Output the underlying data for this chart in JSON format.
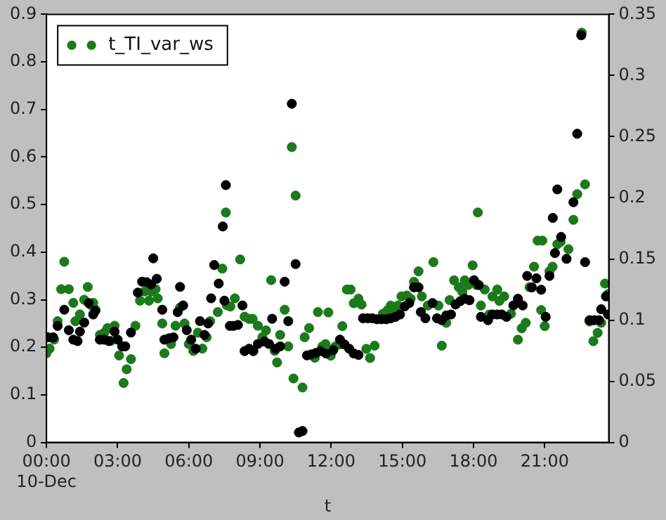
{
  "chart_data": {
    "type": "scatter",
    "xlabel": "t",
    "legend": "top left",
    "marker": "circle",
    "grid": false,
    "xlim": [
      0,
      23.7
    ],
    "xticks": [
      {
        "value": 0,
        "label": "00:00\n10-Dec"
      },
      {
        "value": 3,
        "label": "03:00"
      },
      {
        "value": 6,
        "label": "06:00"
      },
      {
        "value": 9,
        "label": "09:00"
      },
      {
        "value": 12,
        "label": "12:00"
      },
      {
        "value": 15,
        "label": "15:00"
      },
      {
        "value": 18,
        "label": "18:00"
      },
      {
        "value": 21,
        "label": "21:00"
      }
    ],
    "ylim": [
      0,
      0.9
    ],
    "yticks": [
      0.0,
      0.1,
      0.2,
      0.3,
      0.4,
      0.5,
      0.6,
      0.7,
      0.8,
      0.9
    ],
    "y2lim": [
      0,
      0.35
    ],
    "y2ticks": [
      0.0,
      0.05,
      0.1,
      0.15,
      0.2,
      0.25,
      0.3,
      0.35
    ],
    "series": [
      {
        "color": "#000000",
        "x": [
          0.06,
          0.28,
          0.47,
          0.75,
          0.94,
          1.13,
          1.31,
          1.41,
          1.59,
          1.78,
          1.97,
          2.06,
          2.25,
          2.44,
          2.63,
          2.87,
          3.0,
          3.19,
          3.32,
          3.56,
          3.85,
          4.03,
          4.22,
          4.41,
          4.5,
          4.65,
          4.88,
          4.97,
          5.16,
          5.35,
          5.53,
          5.63,
          5.76,
          5.91,
          6.1,
          6.29,
          6.47,
          6.66,
          6.81,
          6.94,
          7.07,
          7.26,
          7.43,
          7.5,
          7.56,
          7.73,
          7.88,
          8.07,
          8.26,
          8.35,
          8.54,
          8.72,
          8.91,
          9.19,
          9.38,
          9.51,
          9.66,
          9.85,
          10.04,
          10.19,
          10.34,
          10.5,
          10.64,
          10.79,
          10.98,
          11.16,
          11.35,
          11.54,
          11.78,
          12.08,
          12.37,
          12.56,
          12.76,
          12.95,
          13.15,
          13.34,
          13.54,
          13.73,
          13.93,
          14.12,
          14.32,
          14.51,
          14.71,
          14.9,
          15.1,
          15.29,
          15.49,
          15.68,
          15.78,
          15.97,
          16.27,
          16.46,
          16.66,
          16.85,
          17.05,
          17.24,
          17.44,
          17.63,
          17.83,
          18.02,
          18.22,
          18.31,
          18.61,
          18.8,
          19.0,
          19.19,
          19.39,
          19.68,
          19.87,
          20.07,
          20.26,
          20.46,
          20.65,
          20.85,
          21.04,
          21.2,
          21.34,
          21.43,
          21.53,
          21.69,
          21.92,
          22.21,
          22.37,
          22.54,
          22.7,
          22.89,
          23.09,
          23.29,
          23.38,
          23.58,
          23.67
        ],
        "values": [
          0.221,
          0.221,
          0.245,
          0.279,
          0.236,
          0.216,
          0.213,
          0.233,
          0.252,
          0.293,
          0.269,
          0.277,
          0.216,
          0.216,
          0.213,
          0.233,
          0.216,
          0.202,
          0.202,
          0.231,
          0.315,
          0.338,
          0.337,
          0.332,
          0.387,
          0.344,
          0.279,
          0.216,
          0.219,
          0.221,
          0.274,
          0.327,
          0.288,
          0.236,
          0.216,
          0.197,
          0.255,
          0.226,
          0.25,
          0.303,
          0.373,
          0.334,
          0.454,
          0.298,
          0.541,
          0.245,
          0.245,
          0.247,
          0.288,
          0.192,
          0.197,
          0.192,
          0.207,
          0.212,
          0.207,
          0.26,
          0.197,
          0.202,
          0.338,
          0.255,
          0.712,
          0.375,
          0.021,
          0.024,
          0.183,
          0.185,
          0.188,
          0.192,
          0.187,
          0.194,
          0.216,
          0.206,
          0.197,
          0.187,
          0.184,
          0.261,
          0.261,
          0.261,
          0.259,
          0.259,
          0.259,
          0.261,
          0.264,
          0.269,
          0.286,
          0.293,
          0.326,
          0.326,
          0.274,
          0.261,
          0.293,
          0.261,
          0.257,
          0.267,
          0.269,
          0.29,
          0.297,
          0.302,
          0.299,
          0.341,
          0.331,
          0.264,
          0.257,
          0.269,
          0.269,
          0.269,
          0.264,
          0.288,
          0.302,
          0.288,
          0.35,
          0.326,
          0.345,
          0.321,
          0.264,
          0.35,
          0.472,
          0.398,
          0.532,
          0.432,
          0.386,
          0.505,
          0.649,
          0.856,
          0.379,
          0.257,
          0.257,
          0.257,
          0.28,
          0.307,
          0.269
        ]
      },
      {
        "name": "t_TI_var_ws",
        "color": "#1b7a1b",
        "axis": "y2",
        "x": [
          0,
          0.13,
          0.32,
          0.47,
          0.62,
          0.75,
          0.94,
          1.13,
          1.22,
          1.41,
          1.59,
          1.74,
          1.88,
          1.97,
          2.06,
          2.25,
          2.44,
          2.57,
          2.72,
          2.87,
          3.06,
          3.25,
          3.38,
          3.56,
          3.75,
          3.94,
          4.13,
          4.32,
          4.41,
          4.6,
          4.69,
          4.88,
          4.97,
          5.25,
          5.44,
          5.63,
          5.82,
          6.0,
          6.19,
          6.38,
          6.57,
          6.75,
          6.9,
          7.22,
          7.41,
          7.56,
          7.6,
          7.75,
          7.94,
          8.16,
          8.35,
          8.54,
          8.69,
          8.91,
          9.1,
          9.25,
          9.47,
          9.62,
          9.72,
          9.85,
          10.04,
          10.19,
          10.34,
          10.41,
          10.5,
          10.79,
          10.88,
          11.07,
          11.31,
          11.44,
          11.63,
          11.76,
          11.88,
          11.98,
          12.17,
          12.37,
          12.47,
          12.66,
          12.82,
          12.95,
          13.15,
          13.28,
          13.48,
          13.64,
          13.83,
          14.03,
          14.18,
          14.38,
          14.51,
          14.65,
          14.81,
          14.96,
          15.19,
          15.35,
          15.49,
          15.68,
          15.82,
          16.07,
          16.31,
          16.52,
          16.66,
          16.85,
          16.99,
          17.18,
          17.38,
          17.53,
          17.63,
          17.77,
          17.96,
          18.12,
          18.18,
          18.31,
          18.47,
          18.66,
          18.8,
          19.0,
          19.09,
          19.29,
          19.58,
          19.87,
          20.03,
          20.2,
          20.36,
          20.55,
          20.7,
          20.85,
          20.9,
          21.0,
          21.2,
          21.33,
          21.53,
          21.67,
          22.0,
          22.21,
          22.37,
          22.56,
          22.7,
          22.89,
          23.05,
          23.23,
          23.38,
          23.54,
          23.67
        ],
        "values": [
          0.0729,
          0.0767,
          0.0841,
          0.0991,
          0.1253,
          0.1477,
          0.1253,
          0.1141,
          0.0991,
          0.1047,
          0.1167,
          0.1271,
          0.1122,
          0.1141,
          0.1085,
          0.0879,
          0.0897,
          0.0935,
          0.083,
          0.0954,
          0.0711,
          0.0486,
          0.0598,
          0.0681,
          0.0954,
          0.1159,
          0.1234,
          0.1159,
          0.1234,
          0.1253,
          0.1178,
          0.0972,
          0.0729,
          0.0804,
          0.0954,
          0.1103,
          0.0972,
          0.0804,
          0.0748,
          0.0897,
          0.0767,
          0.086,
          0.0991,
          0.1066,
          0.1421,
          0.188,
          0.1122,
          0.1111,
          0.1178,
          0.1496,
          0.1028,
          0.101,
          0.101,
          0.0954,
          0.086,
          0.0916,
          0.1327,
          0.0748,
          0.0654,
          0.0879,
          0.1085,
          0.0785,
          0.2415,
          0.0523,
          0.2018,
          0.0449,
          0.086,
          0.0935,
          0.0692,
          0.1066,
          0.0785,
          0.0804,
          0.1063,
          0.0709,
          0.0784,
          0.0802,
          0.0951,
          0.125,
          0.125,
          0.1138,
          0.1175,
          0.1127,
          0.0765,
          0.069,
          0.0791,
          null,
          0.1052,
          0.1082,
          0.1119,
          0.1082,
          0.1119,
          0.1194,
          0.1201,
          0.1175,
          0.1313,
          0.1399,
          0.1194,
          0.1119,
          0.1474,
          0.1119,
          0.0791,
          0.0978,
          0.1164,
          0.1325,
          0.1269,
          0.1231,
          0.1325,
          0.1287,
          0.1448,
          0.1287,
          0.188,
          0.1119,
          0.125,
          0.1045,
          0.1194,
          0.125,
          0.1157,
          0.1194,
          0.1052,
          0.084,
          0.0933,
          0.0978,
          0.1269,
          0.1437,
          0.165,
          0.1082,
          0.165,
          0.0951,
          0.1399,
          0.1437,
          0.162,
          0.164,
          0.158,
          0.182,
          0.203,
          0.335,
          0.211,
          0.0989,
          0.0828,
          0.0896,
          0.0978,
          0.1299,
          0.1213
        ]
      }
    ]
  }
}
